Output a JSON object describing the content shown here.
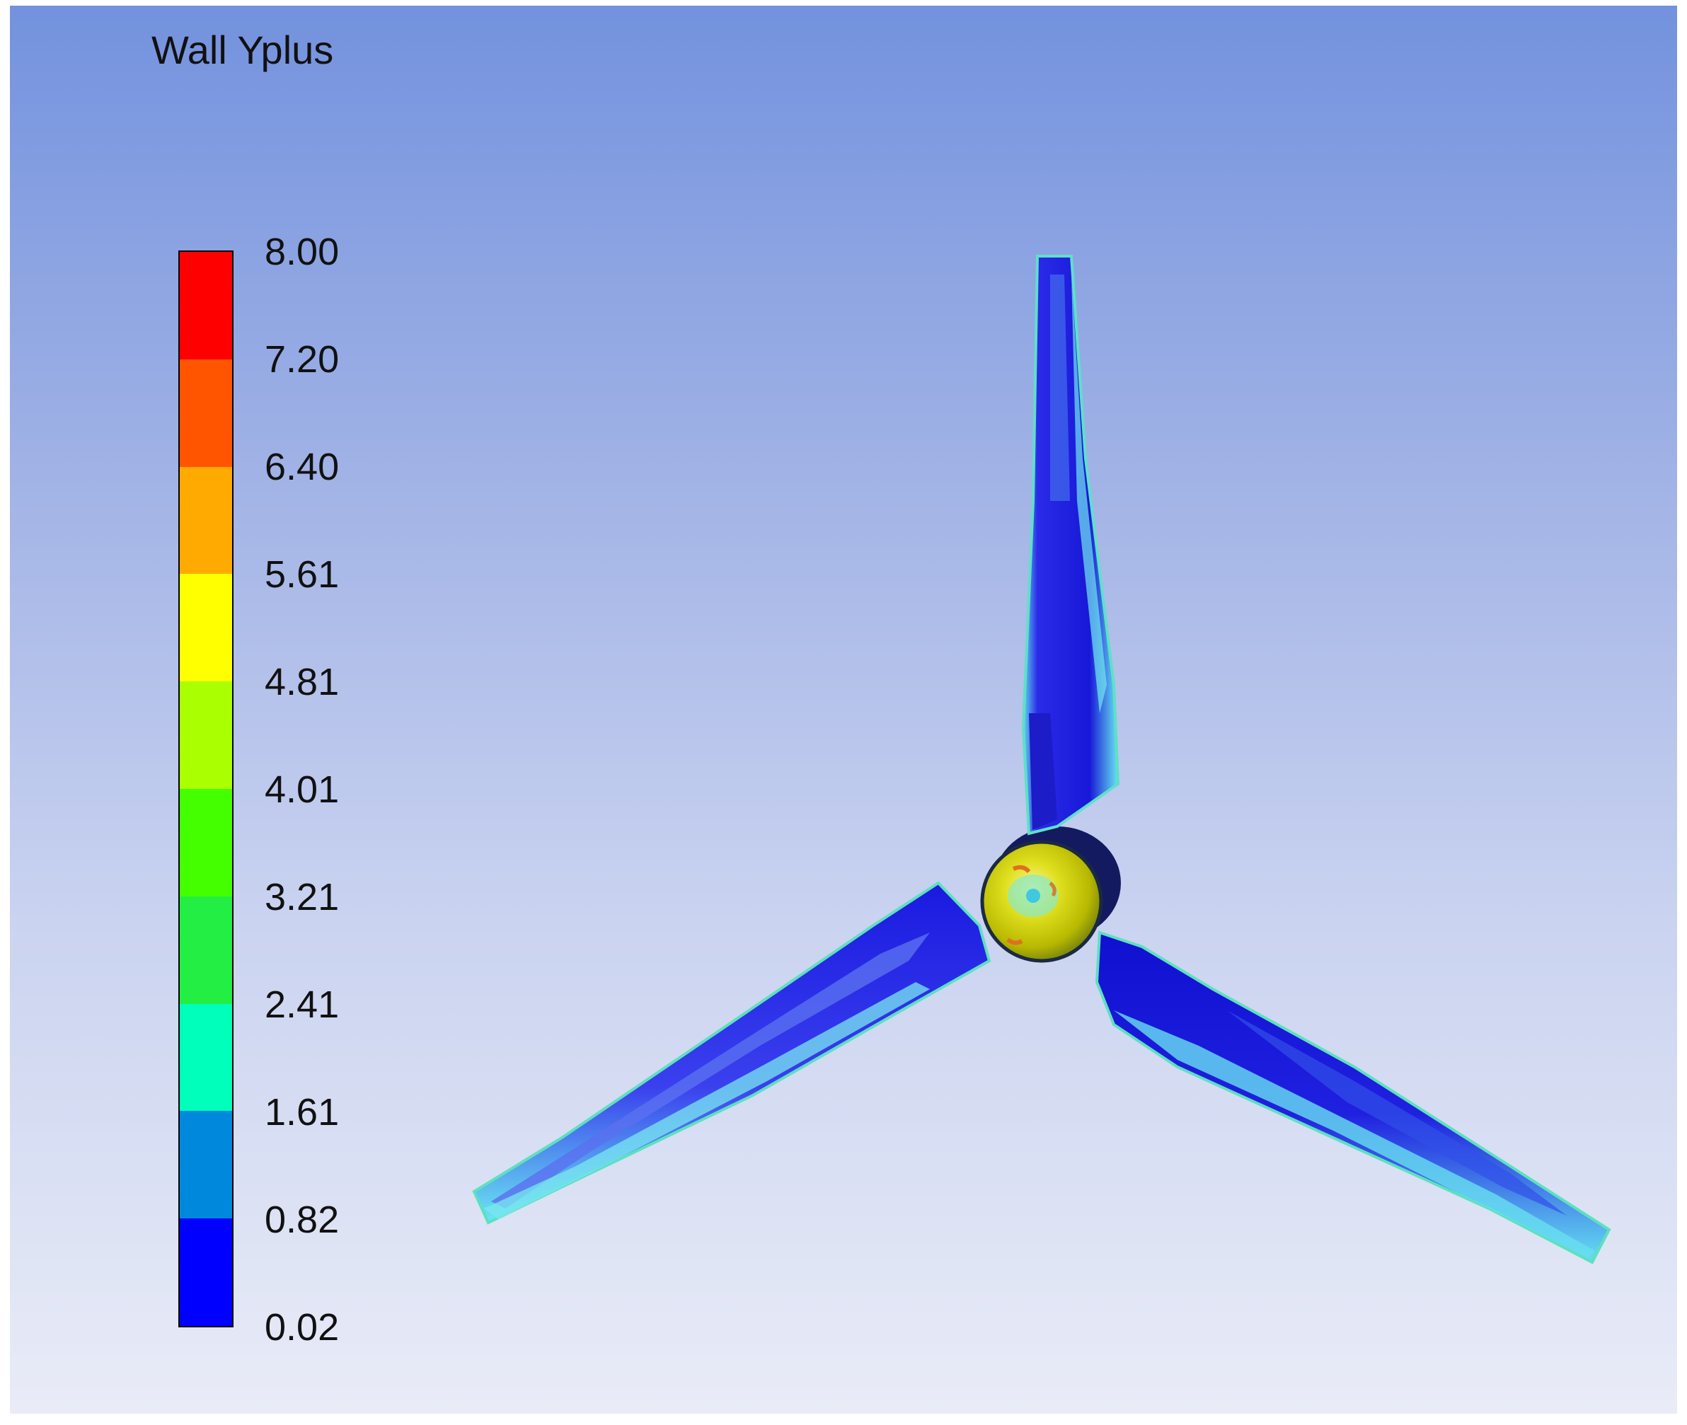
{
  "legend": {
    "title": "Wall Yplus",
    "ticks": [
      "8.00",
      "7.20",
      "6.40",
      "5.61",
      "4.81",
      "4.01",
      "3.21",
      "2.41",
      "1.61",
      "0.82",
      "0.02"
    ],
    "band_colors": [
      "#ff0000",
      "#ff5500",
      "#ffaa00",
      "#ffff00",
      "#aaff00",
      "#44ff00",
      "#22ee44",
      "#00ffbb",
      "#0088dd",
      "#0000ff"
    ]
  },
  "colors": {
    "blade_base": "#1a1ae6",
    "blade_edge": "#66e6f0",
    "hub_base": "#c8c800",
    "hub_highlight": "#f0f080",
    "nacelle": "#1a1a6e"
  }
}
